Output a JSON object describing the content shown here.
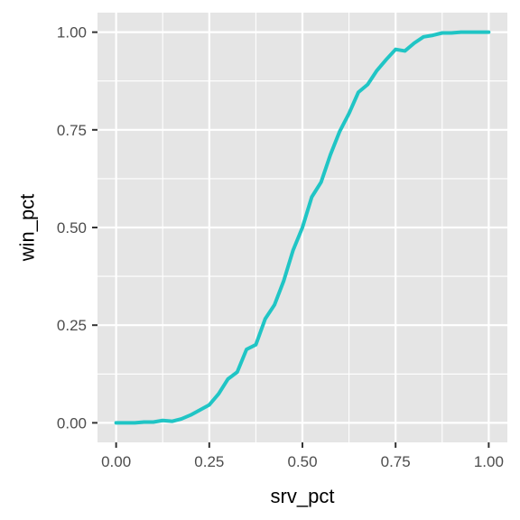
{
  "chart_data": {
    "type": "line",
    "xlabel": "srv_pct",
    "ylabel": "win_pct",
    "xlim": [
      0,
      1
    ],
    "ylim": [
      0,
      1
    ],
    "x_ticks": [
      {
        "value": 0,
        "label": "0.00"
      },
      {
        "value": 0.25,
        "label": "0.25"
      },
      {
        "value": 0.5,
        "label": "0.50"
      },
      {
        "value": 0.75,
        "label": "0.75"
      },
      {
        "value": 1,
        "label": "1.00"
      }
    ],
    "y_ticks": [
      {
        "value": 0,
        "label": "0.00"
      },
      {
        "value": 0.25,
        "label": "0.25"
      },
      {
        "value": 0.5,
        "label": "0.50"
      },
      {
        "value": 0.75,
        "label": "0.75"
      },
      {
        "value": 1,
        "label": "1.00"
      }
    ],
    "grid": true,
    "legend": "none",
    "colors": {
      "line": "#20c5c5",
      "panel": "#e5e5e5",
      "grid": "#ffffff"
    },
    "series": [
      {
        "x": [
          0,
          0.025,
          0.05,
          0.075,
          0.1,
          0.125,
          0.15,
          0.175,
          0.2,
          0.225,
          0.25,
          0.275,
          0.3,
          0.325,
          0.35,
          0.375,
          0.4,
          0.425,
          0.45,
          0.475,
          0.5,
          0.525,
          0.55,
          0.575,
          0.6,
          0.625,
          0.65,
          0.675,
          0.7,
          0.725,
          0.75,
          0.775,
          0.8,
          0.825,
          0.85,
          0.875,
          0.9,
          0.925,
          0.95,
          0.975,
          1
        ],
        "y": [
          0,
          0,
          0,
          0.002,
          0.002,
          0.006,
          0.004,
          0.01,
          0.02,
          0.033,
          0.046,
          0.074,
          0.112,
          0.13,
          0.188,
          0.2,
          0.266,
          0.302,
          0.364,
          0.442,
          0.5,
          0.578,
          0.616,
          0.686,
          0.746,
          0.792,
          0.846,
          0.866,
          0.902,
          0.93,
          0.956,
          0.952,
          0.972,
          0.988,
          0.992,
          0.998,
          0.998,
          1,
          1,
          1,
          1
        ]
      }
    ]
  }
}
